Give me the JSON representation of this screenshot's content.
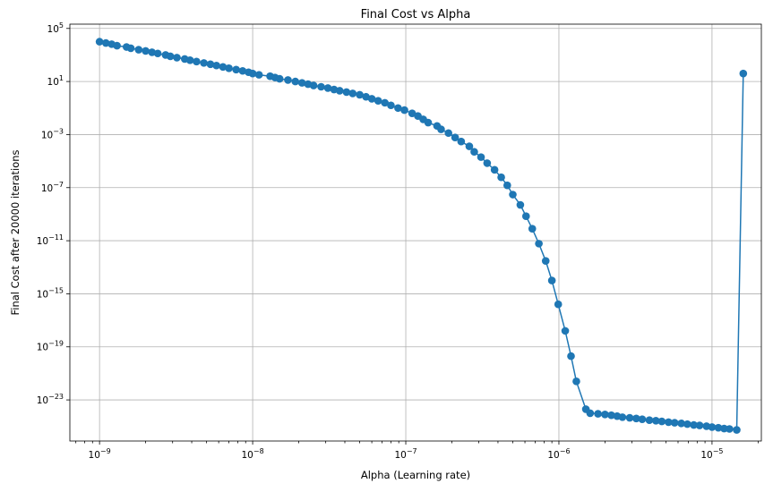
{
  "chart_data": {
    "type": "line",
    "title": "Final Cost vs Alpha",
    "xlabel": "Alpha (Learning rate)",
    "ylabel": "Final Cost after 20000 iterations",
    "xscale": "log",
    "yscale": "log",
    "xlim": [
      6.4e-10,
      2.1e-05
    ],
    "ylim": [
      8e-27,
      210000.0
    ],
    "grid": true,
    "marker": "circle",
    "color": "#1f77b4",
    "xticks": [
      {
        "base": "10",
        "exp": "−9",
        "value": 1e-09
      },
      {
        "base": "10",
        "exp": "−8",
        "value": 1e-08
      },
      {
        "base": "10",
        "exp": "−7",
        "value": 1e-07
      },
      {
        "base": "10",
        "exp": "−6",
        "value": 1e-06
      },
      {
        "base": "10",
        "exp": "−5",
        "value": 1e-05
      }
    ],
    "yticks": [
      {
        "base": "10",
        "exp": "5",
        "value": 100000.0
      },
      {
        "base": "10",
        "exp": "1",
        "value": 10.0
      },
      {
        "base": "10",
        "exp": "−3",
        "value": 0.001
      },
      {
        "base": "10",
        "exp": "−7",
        "value": 1e-07
      },
      {
        "base": "10",
        "exp": "−11",
        "value": 1e-11
      },
      {
        "base": "10",
        "exp": "−15",
        "value": 1e-15
      },
      {
        "base": "10",
        "exp": "−19",
        "value": 1e-19
      },
      {
        "base": "10",
        "exp": "−23",
        "value": 1e-23
      }
    ],
    "series": [
      {
        "x": [
          1e-09,
          1.1e-09,
          1.2e-09,
          1.3e-09,
          1.5e-09,
          1.6e-09,
          1.8e-09,
          2e-09,
          2.2e-09,
          2.4e-09,
          2.7e-09,
          2.9e-09,
          3.2e-09,
          3.6e-09,
          3.9e-09,
          4.3e-09,
          4.8e-09,
          5.3e-09,
          5.8e-09,
          6.4e-09,
          7e-09,
          7.8e-09,
          8.6e-09,
          9.4e-09,
          1e-08,
          1.1e-08,
          1.3e-08,
          1.4e-08,
          1.5e-08,
          1.7e-08,
          1.9e-08,
          2.1e-08,
          2.3e-08,
          2.5e-08,
          2.8e-08,
          3.1e-08,
          3.4e-08,
          3.7e-08,
          4.1e-08,
          4.5e-08,
          5e-08,
          5.5e-08,
          6e-08,
          6.6e-08,
          7.3e-08,
          8e-08,
          8.9e-08,
          9.8e-08,
          1.1e-07,
          1.2e-07,
          1.3e-07,
          1.4e-07,
          1.6e-07,
          1.7e-07,
          1.9e-07,
          2.1e-07,
          2.3e-07,
          2.6e-07,
          2.8e-07,
          3.1e-07,
          3.4e-07,
          3.8e-07,
          4.2e-07,
          4.6e-07,
          5e-07,
          5.6e-07,
          6.1e-07,
          6.7e-07,
          7.4e-07,
          8.2e-07,
          9e-07,
          9.9e-07,
          1.1e-06,
          1.2e-06,
          1.3e-06,
          1.5e-06,
          1.6e-06,
          1.8e-06,
          2e-06,
          2.2e-06,
          2.4e-06,
          2.6e-06,
          2.9e-06,
          3.2e-06,
          3.5e-06,
          3.9e-06,
          4.3e-06,
          4.7e-06,
          5.2e-06,
          5.7e-06,
          6.3e-06,
          6.9e-06,
          7.6e-06,
          8.3e-06,
          9.2e-06,
          1e-05,
          1.1e-05,
          1.2e-05,
          1.3e-05,
          1.45e-05,
          1.6e-05
        ],
        "y": [
          10000.0,
          8000.0,
          6500.0,
          5000.0,
          4000.0,
          3200.0,
          2500.0,
          2000.0,
          1600.0,
          1300.0,
          1000.0,
          790.0,
          630.0,
          500.0,
          400.0,
          320.0,
          250.0,
          200.0,
          160.0,
          126.0,
          100.0,
          79.0,
          63.0,
          50.0,
          40.0,
          32.0,
          25.0,
          20.0,
          16.0,
          13.0,
          10.0,
          7.9,
          6.3,
          5,
          4,
          3.2,
          2.5,
          2,
          1.6,
          1.26,
          1,
          0.7,
          0.5,
          0.35,
          0.25,
          0.16,
          0.1,
          0.07,
          0.04,
          0.025,
          0.014,
          0.008,
          0.0045,
          0.0025,
          0.0013,
          0.0006,
          0.0003,
          0.00013,
          5e-05,
          2e-05,
          7e-06,
          2.2e-06,
          6e-07,
          1.5e-07,
          3e-08,
          5e-09,
          7e-10,
          8e-11,
          6e-12,
          3e-13,
          1e-14,
          1.6e-16,
          1.6e-18,
          2e-20,
          2.5e-22,
          2e-24,
          1e-24,
          9e-25,
          8e-25,
          7e-25,
          6e-25,
          5e-25,
          4.5e-25,
          4e-25,
          3.5e-25,
          3e-25,
          2.7e-25,
          2.4e-25,
          2.1e-25,
          1.9e-25,
          1.7e-25,
          1.5e-25,
          1.3e-25,
          1.2e-25,
          1.05e-25,
          9e-26,
          8e-26,
          7e-26,
          6.5e-26,
          5.5e-26,
          40.0
        ]
      }
    ]
  }
}
